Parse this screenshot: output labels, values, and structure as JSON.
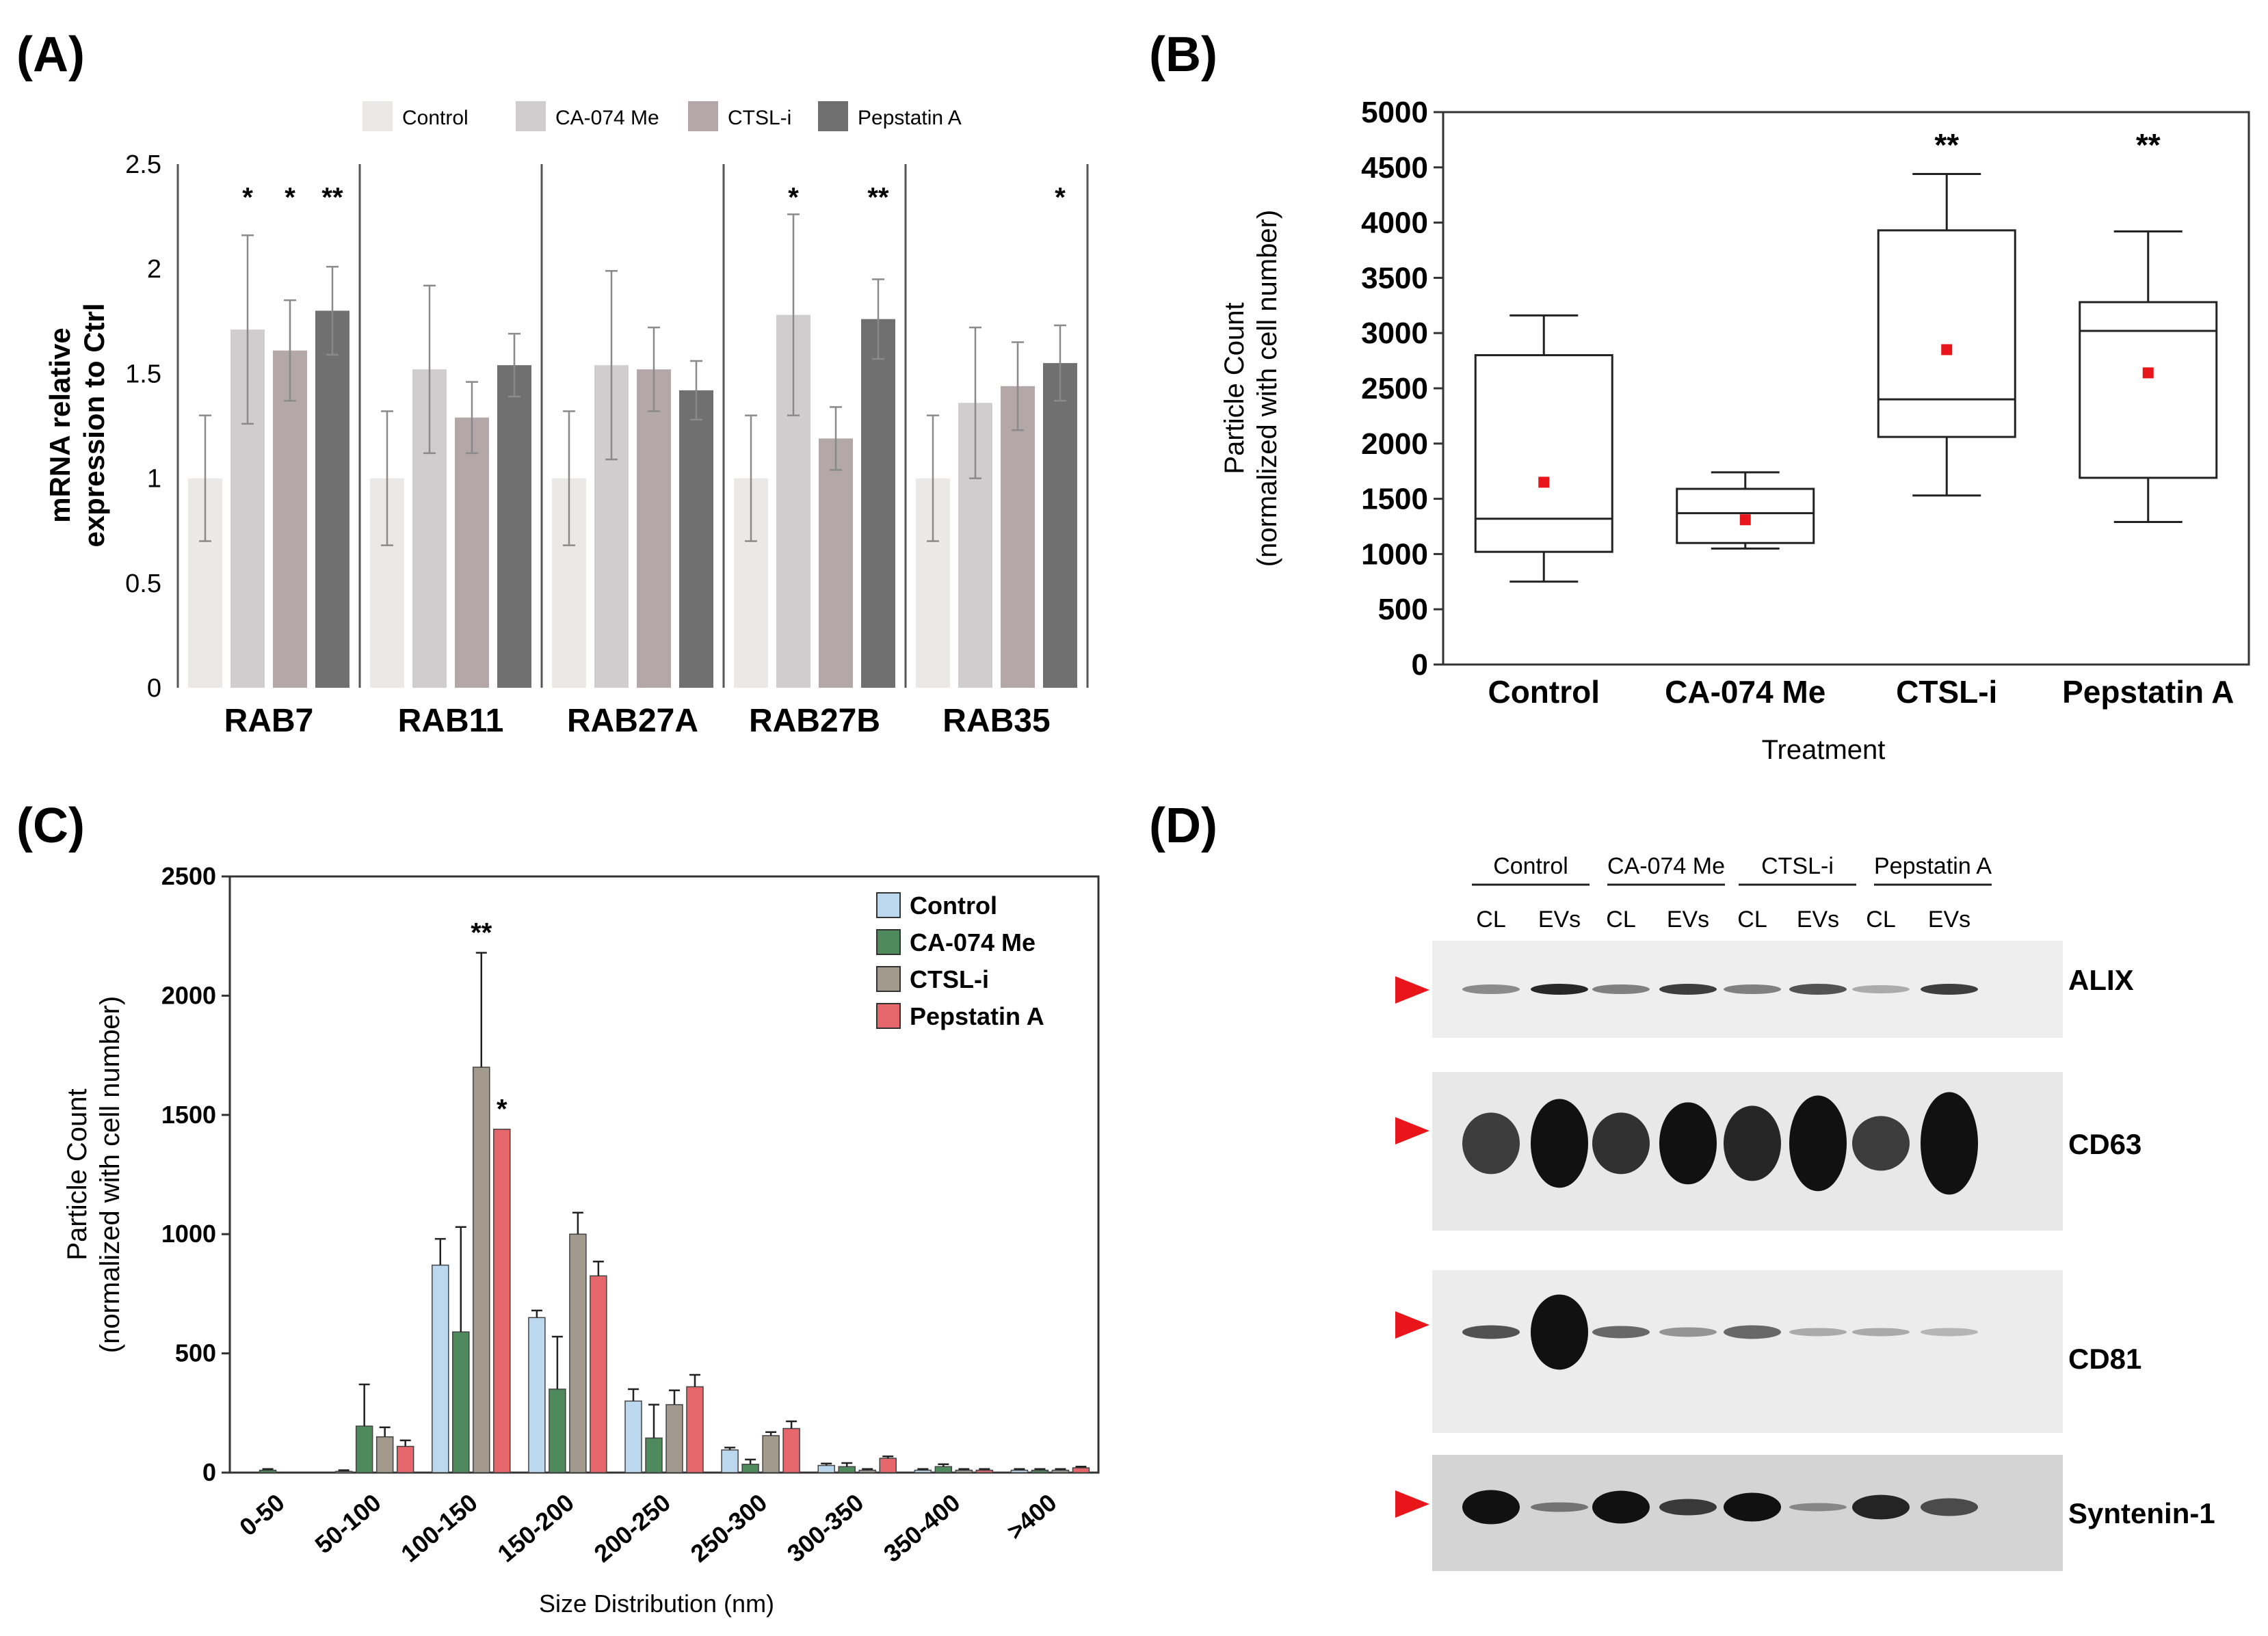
{
  "panels": {
    "a": "(A)",
    "b": "(B)",
    "c": "(C)",
    "d": "(D)"
  },
  "chart_data": [
    {
      "panel": "(A)",
      "type": "bar",
      "ylabel": "mRNA relative expression to Ctrl",
      "ylim": [
        0,
        2.5
      ],
      "yticks": [
        "0",
        "0.5",
        "1",
        "1.5",
        "2",
        "2.5"
      ],
      "categories": [
        "RAB7",
        "RAB11",
        "RAB27A",
        "RAB27B",
        "RAB35"
      ],
      "series": [
        {
          "name": "Control",
          "color": "#ebe8e8",
          "values": [
            1.0,
            1.0,
            1.0,
            1.0,
            1.0
          ],
          "errors": [
            0.3,
            0.32,
            0.32,
            0.3,
            0.3
          ]
        },
        {
          "name": "CA-074 Me",
          "color": "#cfcdcd",
          "values": [
            1.71,
            1.52,
            1.54,
            1.78,
            1.36
          ],
          "errors": [
            0.45,
            0.4,
            0.45,
            0.48,
            0.36
          ]
        },
        {
          "name": "CTSL-i",
          "color": "#b3a7a8",
          "values": [
            1.61,
            1.29,
            1.52,
            1.19,
            1.44
          ],
          "errors": [
            0.24,
            0.17,
            0.2,
            0.15,
            0.21
          ]
        },
        {
          "name": "Pepstatin A",
          "color": "#707070",
          "values": [
            1.8,
            1.54,
            1.42,
            1.76,
            1.55
          ],
          "errors": [
            0.21,
            0.15,
            0.14,
            0.19,
            0.18
          ]
        }
      ],
      "significance": [
        {
          "category": 0,
          "series": 1,
          "mark": "*"
        },
        {
          "category": 0,
          "series": 2,
          "mark": "*"
        },
        {
          "category": 0,
          "series": 3,
          "mark": "**"
        },
        {
          "category": 3,
          "series": 1,
          "mark": "*"
        },
        {
          "category": 3,
          "series": 3,
          "mark": "**"
        },
        {
          "category": 4,
          "series": 3,
          "mark": "*"
        }
      ]
    },
    {
      "panel": "(B)",
      "type": "box",
      "xlabel": "Treatment",
      "ylabel_line1": "Particle Count",
      "ylabel_line2": "(normalized with cell number)",
      "ylim": [
        0,
        5000
      ],
      "yticks": [
        "0",
        "500",
        "1000",
        "1500",
        "2000",
        "2500",
        "3000",
        "3500",
        "4000",
        "4500",
        "5000"
      ],
      "categories": [
        "Control",
        "CA-074 Me",
        "CTSL-i",
        "Pepstatin A"
      ],
      "boxes": [
        {
          "min": 750,
          "q1": 1020,
          "median": 1320,
          "q3": 2800,
          "max": 3160,
          "mean": 1650,
          "mark": ""
        },
        {
          "min": 1050,
          "q1": 1100,
          "median": 1370,
          "q3": 1590,
          "max": 1740,
          "mean": 1310,
          "mark": ""
        },
        {
          "min": 1530,
          "q1": 2060,
          "median": 2400,
          "q3": 3930,
          "max": 4440,
          "mean": 2850,
          "mark": "**"
        },
        {
          "min": 1290,
          "q1": 1690,
          "median": 3020,
          "q3": 3280,
          "max": 3920,
          "mean": 2640,
          "mark": "**"
        }
      ],
      "mean_color": "#e8161b"
    },
    {
      "panel": "(C)",
      "type": "bar",
      "xlabel": "Size Distribution (nm)",
      "ylabel_line1": "Particle Count",
      "ylabel_line2": "(normalized with cell number)",
      "ylim": [
        0,
        2500
      ],
      "yticks": [
        "0",
        "500",
        "1000",
        "1500",
        "2000",
        "2500"
      ],
      "categories": [
        "0-50",
        "50-100",
        "100-150",
        "150-200",
        "200-250",
        "250-300",
        "300-350",
        "350-400",
        ">400"
      ],
      "series": [
        {
          "name": "Control",
          "color": "#bcd8ef",
          "values": [
            0,
            5,
            870,
            650,
            300,
            95,
            30,
            10,
            10
          ],
          "errors": [
            0,
            5,
            110,
            30,
            50,
            10,
            8,
            5,
            5
          ]
        },
        {
          "name": "CA-074 Me",
          "color": "#4f8a5c",
          "values": [
            10,
            195,
            590,
            350,
            145,
            35,
            25,
            25,
            10
          ],
          "errors": [
            5,
            175,
            440,
            220,
            140,
            20,
            15,
            10,
            5
          ]
        },
        {
          "name": "CTSL-i",
          "color": "#a29a8d",
          "values": [
            0,
            150,
            1700,
            1000,
            285,
            155,
            10,
            10,
            10
          ],
          "errors": [
            0,
            40,
            480,
            90,
            60,
            15,
            5,
            5,
            5
          ]
        },
        {
          "name": "Pepstatin A",
          "color": "#e5666b",
          "values": [
            0,
            110,
            1440,
            825,
            360,
            185,
            60,
            10,
            20
          ],
          "errors": [
            0,
            25,
            0,
            60,
            50,
            30,
            8,
            5,
            5
          ]
        }
      ],
      "significance": [
        {
          "category": 2,
          "series": 2,
          "mark": "**"
        },
        {
          "category": 2,
          "series": 3,
          "mark": "*"
        }
      ]
    }
  ],
  "western_blot": {
    "groups": [
      "Control",
      "CA-074 Me",
      "CTSL-i",
      "Pepstatin A"
    ],
    "lanes": [
      "CL",
      "EVs",
      "CL",
      "EVs",
      "CL",
      "EVs",
      "CL",
      "EVs"
    ],
    "proteins": [
      "ALIX",
      "CD63",
      "CD81",
      "Syntenin-1"
    ]
  }
}
